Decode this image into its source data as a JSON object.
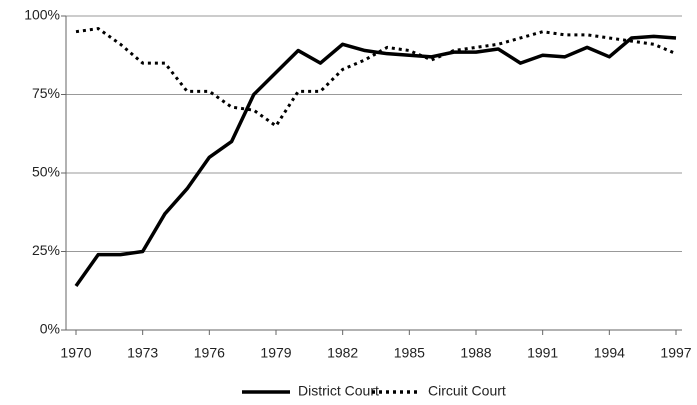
{
  "chart_data": {
    "type": "line",
    "x": [
      1970,
      1971,
      1972,
      1973,
      1974,
      1975,
      1976,
      1977,
      1978,
      1979,
      1980,
      1981,
      1982,
      1983,
      1984,
      1985,
      1986,
      1987,
      1988,
      1989,
      1990,
      1991,
      1992,
      1993,
      1994,
      1995,
      1996,
      1997
    ],
    "series": [
      {
        "name": "District Court",
        "color": "#000000",
        "style": "solid",
        "values": [
          14,
          24,
          24,
          25,
          37,
          45,
          55,
          60,
          75,
          82,
          89,
          85,
          91,
          89,
          88,
          87.5,
          87,
          88.5,
          88.5,
          89.5,
          85,
          87.5,
          87,
          90,
          87,
          93,
          93.5,
          93
        ]
      },
      {
        "name": "Circuit Court",
        "color": "#000000",
        "style": "dotted",
        "values": [
          95,
          96,
          91,
          85,
          85,
          76,
          76,
          71,
          70,
          65,
          76,
          76,
          83,
          86,
          90,
          89,
          86,
          89,
          90,
          91,
          93,
          95,
          94,
          94,
          93,
          92,
          91,
          88
        ]
      }
    ],
    "xlim": [
      1970,
      1997
    ],
    "xticks": [
      1970,
      1973,
      1976,
      1979,
      1982,
      1985,
      1988,
      1991,
      1994,
      1997
    ],
    "ylim": [
      0,
      100
    ],
    "yticks": [
      {
        "value": 0,
        "label": "0%"
      },
      {
        "value": 25,
        "label": "25%"
      },
      {
        "value": 50,
        "label": "50%"
      },
      {
        "value": 75,
        "label": "75%"
      },
      {
        "value": 100,
        "label": "100%"
      }
    ],
    "grid": true,
    "legend": "bottom"
  }
}
